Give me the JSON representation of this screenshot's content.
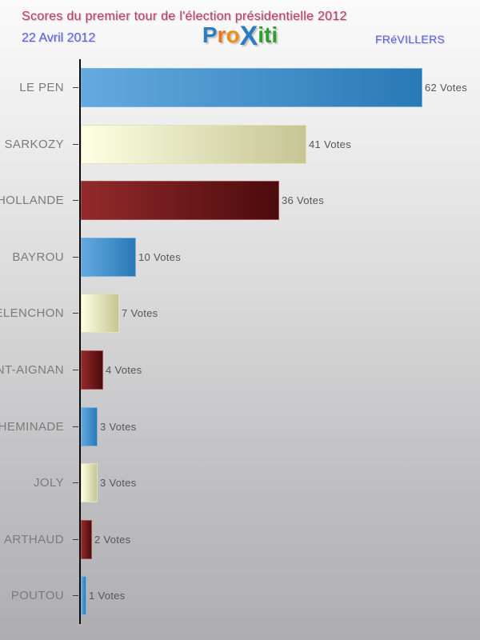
{
  "header": {
    "title": "Scores du premier tour de l'élection présidentielle 2012",
    "date": "22 Avril 2012",
    "place": "FRéVILLERS",
    "logo_text": "Proxiti",
    "logo_letters": [
      {
        "ch": "P",
        "color": "#2d7bc0",
        "big": false
      },
      {
        "ch": "r",
        "color": "#ee7418",
        "big": false
      },
      {
        "ch": "o",
        "color": "#ef8c16",
        "big": false
      },
      {
        "ch": "X",
        "color": "#2d7bc0",
        "big": true
      },
      {
        "ch": "i",
        "color": "#2e9e2e",
        "big": false
      },
      {
        "ch": "t",
        "color": "#2e9e2e",
        "big": false
      },
      {
        "ch": "i",
        "color": "#2e9e2e",
        "big": false
      }
    ],
    "title_color": "#c23a62",
    "accent_blue": "#5c5ce0"
  },
  "chart_data": {
    "type": "bar",
    "orientation": "horizontal",
    "title": "Scores du premier tour de l'élection présidentielle 2012",
    "subtitle": "22 Avril 2012 — FRéVILLERS",
    "categories": [
      "LE PEN",
      "SARKOZY",
      "HOLLANDE",
      "BAYROU",
      "MELENCHON",
      "DUPONT-AIGNAN",
      "CHEMINADE",
      "JOLY",
      "ARTHAUD",
      "POUTOU"
    ],
    "values": [
      62,
      41,
      36,
      10,
      7,
      4,
      3,
      3,
      2,
      1
    ],
    "value_suffix": " Votes",
    "xlim": [
      0,
      65
    ],
    "grid": false,
    "legend": false,
    "bar_colors_cycle": [
      "blue",
      "cream",
      "darkred"
    ],
    "colors": {
      "blue": {
        "from": "#63aadf",
        "to": "#2979b6",
        "border": "#79b4e2"
      },
      "cream": {
        "from": "#fdffe3",
        "to": "#c6c594",
        "border": "#e2e2ba"
      },
      "darkred": {
        "from": "#932a2c",
        "to": "#4c0b0c",
        "border": "#a65252"
      }
    }
  }
}
